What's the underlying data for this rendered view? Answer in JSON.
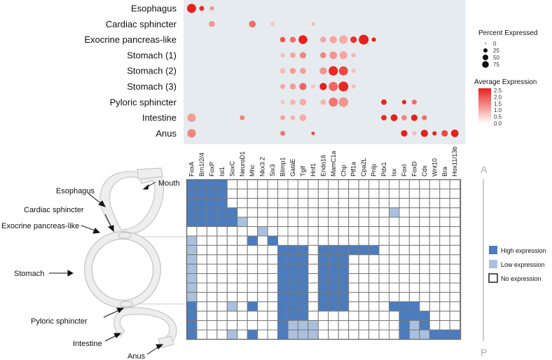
{
  "colors": {
    "panel_bg": "#e6ebef",
    "high": "#4a7cbf",
    "low": "#a9c1de",
    "none": "#ffffff",
    "grid": "#7a7a7a",
    "dot_low": "#fbe3dc",
    "dot_high": "#e8201c",
    "ap_axis": "#bbbbbb"
  },
  "genes": [
    "FoxA",
    "Brn1/2/4",
    "FoxP",
    "Isl1",
    "SoxC",
    "NeuroD1",
    "Mhc",
    "Nkx3.2",
    "Six3",
    "Blimp1",
    "GataE",
    "Tgif",
    "Hnf1",
    "Endo16",
    "MamC1a",
    "Chp",
    "Ptf1a",
    "Cpa2L",
    "Pnlp",
    "Pdx1",
    "Isx",
    "FoxI",
    "FoxD",
    "Cdx",
    "Wnt10",
    "Bra",
    "Hox11/13b"
  ],
  "chart_data": {
    "type": "dotplot",
    "rows": [
      "Esophagus",
      "Cardiac sphincter",
      "Exocrine pancreas-like",
      "Stomach (1)",
      "Stomach (2)",
      "Stomach (3)",
      "Pyloric sphincter",
      "Intestine",
      "Anus"
    ],
    "pct_expressed": [
      [
        70,
        15,
        10,
        0,
        0,
        0,
        0,
        0,
        0,
        0,
        0,
        0,
        0,
        0,
        0,
        0,
        0,
        0,
        0,
        0,
        0,
        0,
        0,
        0,
        0,
        0,
        0
      ],
      [
        0,
        0,
        25,
        0,
        0,
        0,
        35,
        0,
        10,
        0,
        0,
        0,
        5,
        0,
        0,
        0,
        0,
        0,
        0,
        0,
        0,
        0,
        0,
        0,
        0,
        0,
        0
      ],
      [
        0,
        0,
        0,
        0,
        0,
        0,
        0,
        0,
        0,
        20,
        25,
        65,
        0,
        25,
        40,
        60,
        30,
        85,
        10,
        0,
        0,
        0,
        0,
        0,
        0,
        0,
        0
      ],
      [
        0,
        0,
        0,
        0,
        0,
        0,
        0,
        0,
        0,
        10,
        20,
        30,
        0,
        25,
        45,
        50,
        10,
        0,
        0,
        0,
        0,
        0,
        0,
        0,
        0,
        0,
        0
      ],
      [
        0,
        0,
        0,
        0,
        0,
        0,
        0,
        0,
        0,
        20,
        25,
        25,
        0,
        40,
        75,
        70,
        10,
        0,
        0,
        0,
        0,
        0,
        0,
        0,
        0,
        0,
        0
      ],
      [
        0,
        0,
        0,
        0,
        0,
        0,
        0,
        0,
        0,
        15,
        25,
        40,
        10,
        40,
        70,
        85,
        10,
        0,
        0,
        0,
        0,
        0,
        0,
        0,
        0,
        0,
        0
      ],
      [
        0,
        0,
        0,
        0,
        0,
        0,
        0,
        0,
        0,
        10,
        20,
        35,
        0,
        20,
        70,
        80,
        0,
        0,
        0,
        20,
        0,
        10,
        15,
        0,
        0,
        0,
        0
      ],
      [
        60,
        0,
        0,
        0,
        0,
        15,
        0,
        0,
        0,
        15,
        15,
        35,
        0,
        0,
        0,
        0,
        0,
        0,
        0,
        20,
        35,
        20,
        30,
        15,
        0,
        0,
        0
      ],
      [
        60,
        0,
        0,
        0,
        0,
        0,
        0,
        0,
        0,
        15,
        0,
        0,
        5,
        0,
        0,
        0,
        0,
        0,
        0,
        0,
        0,
        30,
        10,
        40,
        10,
        30,
        45
      ]
    ],
    "avg_expression": [
      [
        2.5,
        2.3,
        1.0,
        0,
        0,
        0,
        0,
        0,
        0,
        0,
        0,
        0,
        0,
        0,
        0,
        0,
        0,
        0,
        0,
        0,
        0,
        0,
        0,
        0,
        0,
        0,
        0
      ],
      [
        0,
        0,
        1.0,
        0,
        0,
        0,
        1.5,
        0,
        0.4,
        0,
        0,
        0,
        0.6,
        0,
        0,
        0,
        0,
        0,
        0,
        0,
        0,
        0,
        0,
        0,
        0,
        0,
        0
      ],
      [
        0,
        0,
        0,
        0,
        0,
        0,
        0,
        0,
        0,
        1.8,
        1.5,
        2.5,
        0,
        0.8,
        0.8,
        0.7,
        2.3,
        2.5,
        2.5,
        0,
        0,
        0,
        0,
        0,
        0,
        0,
        0
      ],
      [
        0,
        0,
        0,
        0,
        0,
        0,
        0,
        0,
        0,
        0.5,
        0.8,
        1.2,
        0,
        1.2,
        1.0,
        0.8,
        0.6,
        0,
        0,
        0,
        0,
        0,
        0,
        0,
        0,
        0,
        0
      ],
      [
        0,
        0,
        0,
        0,
        0,
        0,
        0,
        0,
        0,
        0.5,
        0.9,
        0.9,
        0,
        1.0,
        2.4,
        2.0,
        0.5,
        0,
        0,
        0,
        0,
        0,
        0,
        0,
        0,
        0,
        0
      ],
      [
        0,
        0,
        0,
        0,
        0,
        0,
        0,
        0,
        0,
        0.8,
        0.9,
        1.6,
        0.4,
        2.5,
        1.6,
        2.4,
        0.5,
        0,
        0,
        0,
        0,
        0,
        0,
        0,
        0,
        0,
        0
      ],
      [
        0,
        0,
        0,
        0,
        0,
        0,
        0,
        0,
        0,
        0.4,
        0.6,
        0.7,
        0,
        0.6,
        1.4,
        1.0,
        0,
        0,
        0,
        2.4,
        0,
        2.5,
        1.5,
        0,
        0,
        0,
        0
      ],
      [
        0.9,
        0,
        0,
        0,
        0,
        1.2,
        0,
        0,
        0,
        0.8,
        0.6,
        0.7,
        0,
        0,
        0,
        0,
        0,
        0,
        0,
        2.4,
        2.5,
        1.2,
        2.5,
        1.5,
        0,
        0,
        0
      ],
      [
        1.2,
        0,
        0,
        0,
        0,
        0,
        0,
        0,
        0,
        1.4,
        0,
        0,
        2.0,
        0,
        0,
        0,
        0,
        0,
        0,
        0,
        0,
        2.5,
        0.5,
        2.5,
        2.5,
        2.0,
        2.5
      ]
    ],
    "legend_size_title": "Percent Expressed",
    "legend_size_values": [
      "0",
      "25",
      "50",
      "75"
    ],
    "legend_color_title": "Average Expression",
    "legend_color_values": [
      "2.5",
      "2.0",
      "1.5",
      "1.0",
      "0.5",
      "0.0"
    ],
    "color_max": 2.5
  },
  "heatmap": {
    "values": [
      "222200000000000000000000000",
      "222200000000000000000000000",
      "222200000000000000000000000",
      "222220000000000000001000000",
      "222221000000000000000000000",
      "000000010000000000000000000",
      "100000202000000000000000000",
      "100000000222022222200000000",
      "100000000222022200000000000",
      "100000000222022200000000000",
      "100000000222022200000000000",
      "100000000222022200000000000",
      "100000000222022200000000000",
      "200010200222022200002220000",
      "200000000222000000000222000",
      "200000000211100000000212000",
      "200010200211100000000211222"
    ],
    "legend": [
      "High expression",
      "Low expression",
      "No expression"
    ]
  },
  "diagram": {
    "labels": [
      "Mouth",
      "Esophagus",
      "Cardiac sphincter",
      "Exocrine pancreas-like",
      "Stomach",
      "Pyloric sphincter",
      "Intestine",
      "Anus"
    ]
  },
  "axis": {
    "anterior": "A",
    "posterior": "P"
  }
}
